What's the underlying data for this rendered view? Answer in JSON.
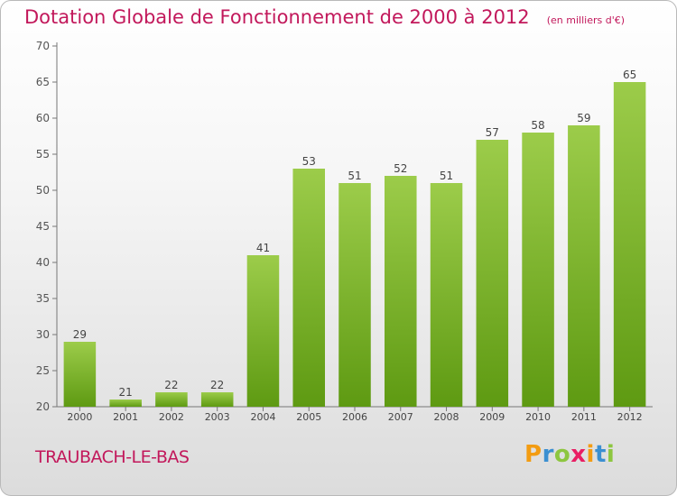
{
  "header": {
    "title": "Dotation Globale de Fonctionnement de 2000 à 2012",
    "unit": "(en milliers d'€)"
  },
  "footer": {
    "commune": "TRAUBACH-LE-BAS",
    "logo": "Proxiti"
  },
  "colors": {
    "bar_top": "#9ccc4a",
    "bar_bottom": "#5e9a12",
    "title": "#c2185b",
    "axis": "#555555"
  },
  "chart_data": {
    "type": "bar",
    "title": "Dotation Globale de Fonctionnement de 2000 à 2012",
    "subtitle": "(en milliers d'€)",
    "xlabel": "",
    "ylabel": "",
    "categories": [
      "2000",
      "2001",
      "2002",
      "2003",
      "2004",
      "2005",
      "2006",
      "2007",
      "2008",
      "2009",
      "2010",
      "2011",
      "2012"
    ],
    "values": [
      29,
      21,
      22,
      22,
      41,
      53,
      51,
      52,
      51,
      57,
      58,
      59,
      65
    ],
    "ylim": [
      20,
      70
    ],
    "yticks": [
      20,
      25,
      30,
      35,
      40,
      45,
      50,
      55,
      60,
      65,
      70
    ],
    "grid": false,
    "legend": "none",
    "data_labels": true
  }
}
